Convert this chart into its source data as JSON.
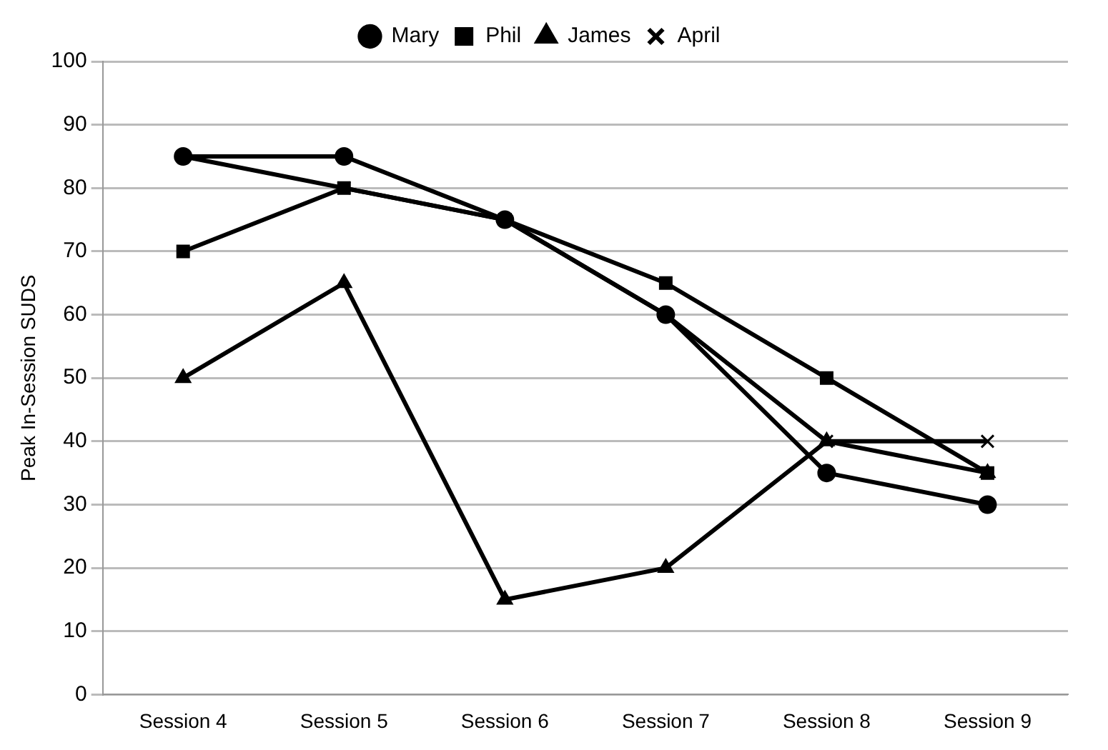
{
  "chart_data": {
    "type": "line",
    "ylabel": "Peak In-Session SUDS",
    "categories": [
      "Session 4",
      "Session 5",
      "Session 6",
      "Session 7",
      "Session 8",
      "Session 9"
    ],
    "series": [
      {
        "name": "Mary",
        "color": "#000000",
        "marker": "circle",
        "values": [
          85,
          85,
          75,
          60,
          35,
          30
        ]
      },
      {
        "name": "Phil",
        "color": "#000000",
        "marker": "square",
        "values": [
          70,
          80,
          75,
          65,
          50,
          35
        ]
      },
      {
        "name": "James",
        "color": "#000000",
        "marker": "triangle",
        "values": [
          50,
          65,
          15,
          20,
          40,
          35
        ]
      },
      {
        "name": "April",
        "color": "#000000",
        "marker": "cross",
        "values": [
          85,
          80,
          75,
          60,
          40,
          40
        ]
      }
    ],
    "ylim": [
      0,
      100
    ],
    "yticks": [
      0,
      10,
      20,
      30,
      40,
      50,
      60,
      70,
      80,
      90,
      100
    ],
    "grid": "y",
    "legend": "top"
  }
}
